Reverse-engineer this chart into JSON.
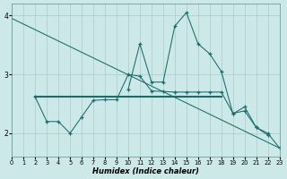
{
  "xlabel": "Humidex (Indice chaleur)",
  "bg_color": "#cce8e8",
  "grid_color": "#aacccc",
  "line_color": "#1a6b6b",
  "xlim": [
    0,
    23
  ],
  "ylim": [
    1.6,
    4.2
  ],
  "yticks": [
    2,
    3,
    4
  ],
  "xticks": [
    0,
    1,
    2,
    3,
    4,
    5,
    6,
    7,
    8,
    9,
    10,
    11,
    12,
    13,
    14,
    15,
    16,
    17,
    18,
    19,
    20,
    21,
    22,
    23
  ],
  "line1_x": [
    0,
    23
  ],
  "line1_y": [
    3.95,
    1.75
  ],
  "line2_x": [
    2,
    18
  ],
  "line2_y": [
    2.62,
    2.62
  ],
  "line3_x": [
    2,
    3,
    4,
    5,
    6,
    7,
    8,
    9,
    10,
    11,
    12,
    13,
    14,
    15,
    16,
    17,
    18,
    19,
    20,
    21,
    22
  ],
  "line3_y": [
    2.62,
    2.2,
    2.2,
    2.0,
    2.28,
    2.56,
    2.57,
    2.57,
    3.0,
    2.97,
    2.72,
    2.71,
    2.7,
    2.7,
    2.7,
    2.7,
    2.7,
    2.34,
    2.38,
    2.1,
    1.97
  ],
  "line4_x": [
    10,
    11,
    12,
    13,
    14,
    15,
    16,
    17,
    18,
    19,
    20,
    21,
    22,
    23
  ],
  "line4_y": [
    2.75,
    3.52,
    2.87,
    2.87,
    3.82,
    4.05,
    3.52,
    3.35,
    3.05,
    2.33,
    2.45,
    2.1,
    2.0,
    1.75
  ]
}
